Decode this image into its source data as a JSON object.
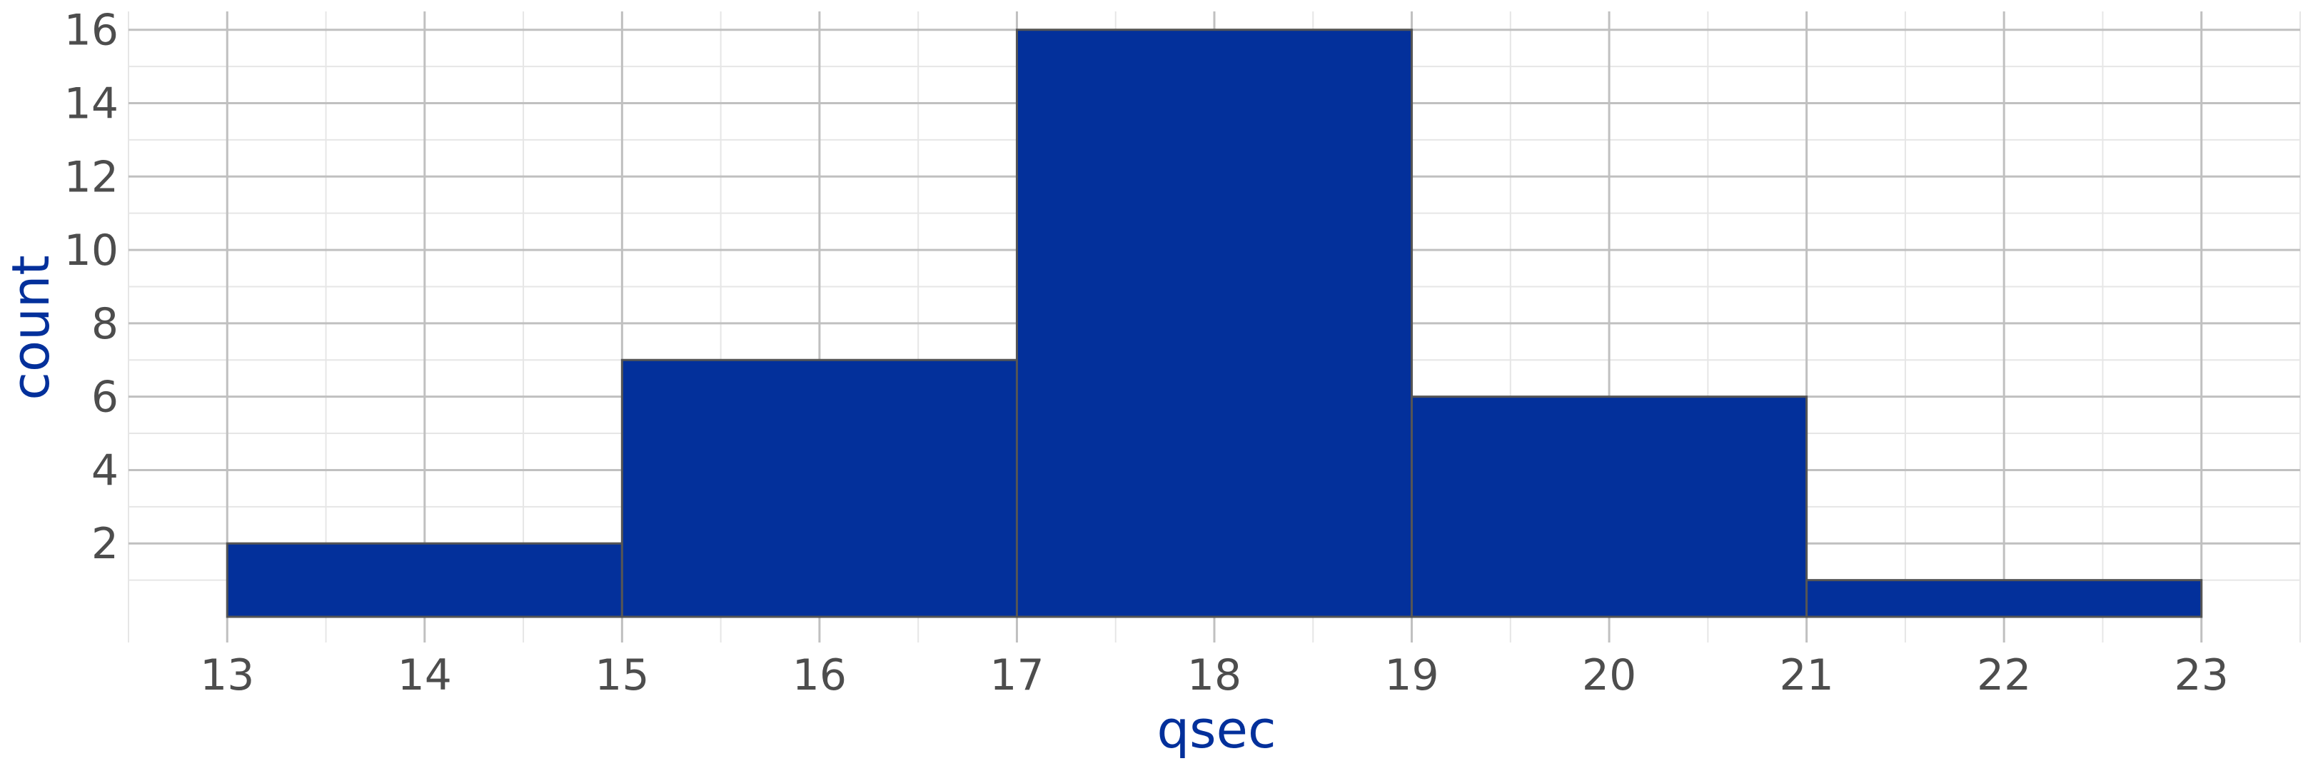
{
  "chart_data": {
    "type": "histogram",
    "xlabel": "qsec",
    "ylabel": "count",
    "title": "",
    "bins": [
      {
        "x0": 13,
        "x1": 15,
        "count": 2
      },
      {
        "x0": 15,
        "x1": 17,
        "count": 7
      },
      {
        "x0": 17,
        "x1": 19,
        "count": 16
      },
      {
        "x0": 19,
        "x1": 21,
        "count": 6
      },
      {
        "x0": 21,
        "x1": 23,
        "count": 1
      }
    ],
    "xlim": [
      12.5,
      23.5
    ],
    "ylim": [
      -0.7,
      16.5
    ],
    "x_ticks": [
      13,
      14,
      15,
      16,
      17,
      18,
      19,
      20,
      21,
      22,
      23
    ],
    "x_tick_labels": [
      "13",
      "14",
      "15",
      "16",
      "17",
      "18",
      "19",
      "20",
      "21",
      "22",
      "23"
    ],
    "y_ticks": [
      2,
      4,
      6,
      8,
      10,
      12,
      14,
      16
    ],
    "y_tick_labels": [
      "2",
      "4",
      "6",
      "8",
      "10",
      "12",
      "14",
      "16"
    ],
    "grid": true,
    "colors": {
      "bar_fill": "#03309b",
      "bar_stroke": "#555555",
      "axis_title": "#03309b",
      "tick_label": "#4d4d4d",
      "grid_major": "#c0c0c0",
      "grid_minor": "#e6e6e6"
    }
  }
}
